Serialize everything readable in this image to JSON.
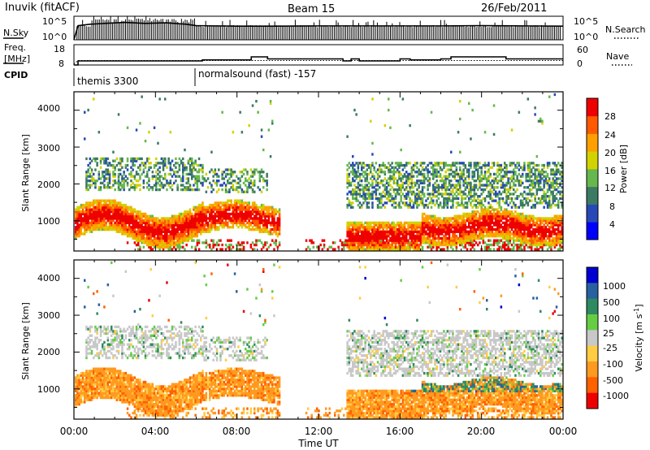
{
  "header": {
    "station": "Inuvik (fitACF)",
    "beam": "Beam 15",
    "date": "26/Feb/2011"
  },
  "top_panels": {
    "nsky_label": "N.Sky",
    "nsearch_label": "N.Search",
    "nsky_ticks": [
      "10^5",
      "10^0"
    ],
    "nsearch_ticks": [
      "10^5",
      "10^0"
    ],
    "freq_label_line1": "Freq.",
    "freq_label_line2": "[MHz]",
    "freq_ticks": [
      "18",
      "8"
    ],
    "nave_ticks": [
      "60",
      "0"
    ],
    "nave_label": "Nave",
    "cpid_label": "CPID",
    "cpid_segments": [
      "themis 3300",
      "normalsound (fast) -157"
    ]
  },
  "x_axis": {
    "label": "Time UT",
    "ticks": [
      "00:00",
      "04:00",
      "08:00",
      "12:00",
      "16:00",
      "20:00",
      "00:00"
    ]
  },
  "power_panel": {
    "ylabel": "Slant Range [km]",
    "yticks": [
      "4000",
      "3000",
      "2000",
      "1000"
    ],
    "colorbar_label": "Power [dB]",
    "colorbar_ticks": [
      "28",
      "24",
      "20",
      "16",
      "12",
      "8",
      "4"
    ]
  },
  "velocity_panel": {
    "ylabel": "Slant Range [km]",
    "yticks": [
      "4000",
      "3000",
      "2000",
      "1000"
    ],
    "colorbar_label": "Velocity [m s",
    "colorbar_label_sup": "-1",
    "colorbar_label_end": "]",
    "colorbar_ticks": [
      "1000",
      "500",
      "100",
      "25",
      "-25",
      "-100",
      "-500",
      "-1000"
    ]
  },
  "colors": {
    "power_scale": [
      "#0000ff",
      "#2848b8",
      "#3c7a64",
      "#66b84c",
      "#d2d200",
      "#ffa000",
      "#ff5a00",
      "#ee0000"
    ],
    "velocity_scale": [
      "#0000d0",
      "#2860a0",
      "#2e8a60",
      "#66cc44",
      "#c8c8c8",
      "#ffcc44",
      "#ff9a20",
      "#ff6000",
      "#ee0000"
    ]
  },
  "chart_data": [
    {
      "type": "line",
      "title": "Inuvik (fitACF)",
      "subtitle": "Beam 15",
      "x_label": "Time UT",
      "x_range_hours": [
        0,
        24
      ],
      "series": [
        {
          "name": "N.Sky",
          "x": [
            0,
            0.2,
            0.8,
            1.5,
            2.5,
            3.5,
            4.5,
            5.5,
            6,
            8,
            10,
            12,
            14,
            16,
            18,
            20,
            22,
            24
          ],
          "y": [
            1,
            1000,
            2000,
            3000,
            5000,
            3000,
            4000,
            2000,
            1000,
            800,
            800,
            900,
            900,
            900,
            900,
            1000,
            900,
            800
          ]
        },
        {
          "name": "Freq. [MHz]",
          "x": [
            0,
            0.2,
            6,
            6.3,
            8.3,
            8.7,
            9.5,
            12,
            13,
            13.2,
            13.6,
            14,
            16,
            16.5,
            18,
            18.5,
            21,
            21.2,
            24
          ],
          "y": [
            8,
            10,
            10,
            10.5,
            10.5,
            12,
            11,
            11,
            11,
            10,
            11,
            10,
            11,
            10.5,
            11,
            12,
            12,
            11,
            11
          ]
        }
      ],
      "cpid": [
        {
          "start_hour": 0,
          "label": "themis 3300"
        },
        {
          "start_hour": 6,
          "label": "normalsound (fast) -157"
        }
      ]
    },
    {
      "type": "heatmap",
      "title": "",
      "x_label": "Time UT",
      "y_label": "Slant Range [km]",
      "x_range_hours": [
        0,
        24
      ],
      "y_range": [
        180,
        4500
      ],
      "colorbar": {
        "label": "Power [dB]",
        "ticks": [
          4,
          8,
          12,
          16,
          20,
          24,
          28
        ]
      },
      "features": [
        {
          "hours": [
            0,
            6.3
          ],
          "range_km": [
            500,
            1500
          ],
          "value_db": 28
        },
        {
          "hours": [
            6.3,
            9.5
          ],
          "range_km": [
            700,
            1400
          ],
          "value_db": 26
        },
        {
          "hours": [
            13.5,
            24
          ],
          "range_km": [
            250,
            1200
          ],
          "value_db": 28
        },
        {
          "hours": [
            0.5,
            9
          ],
          "range_km": [
            1800,
            2600
          ],
          "value_db": 12
        },
        {
          "hours": [
            13.5,
            24
          ],
          "range_km": [
            1500,
            2500
          ],
          "value_db": 10
        }
      ]
    },
    {
      "type": "heatmap",
      "title": "",
      "x_label": "Time UT",
      "y_label": "Slant Range [km]",
      "x_range_hours": [
        0,
        24
      ],
      "y_range": [
        180,
        4500
      ],
      "colorbar": {
        "label": "Velocity [m s-1]",
        "ticks": [
          -1000,
          -500,
          -100,
          -25,
          25,
          100,
          500,
          1000
        ]
      },
      "features": [
        {
          "hours": [
            0,
            6.3
          ],
          "range_km": [
            500,
            1800
          ],
          "value_ms": -150
        },
        {
          "hours": [
            6.3,
            9.5
          ],
          "range_km": [
            700,
            1500
          ],
          "value_ms": -80
        },
        {
          "hours": [
            13.5,
            24
          ],
          "range_km": [
            300,
            1200
          ],
          "value_ms": -200
        },
        {
          "hours": [
            0.5,
            9
          ],
          "range_km": [
            1800,
            2600
          ],
          "value_ms": 0
        },
        {
          "hours": [
            17,
            24
          ],
          "range_km": [
            800,
            1800
          ],
          "value_ms": 300
        }
      ]
    }
  ]
}
